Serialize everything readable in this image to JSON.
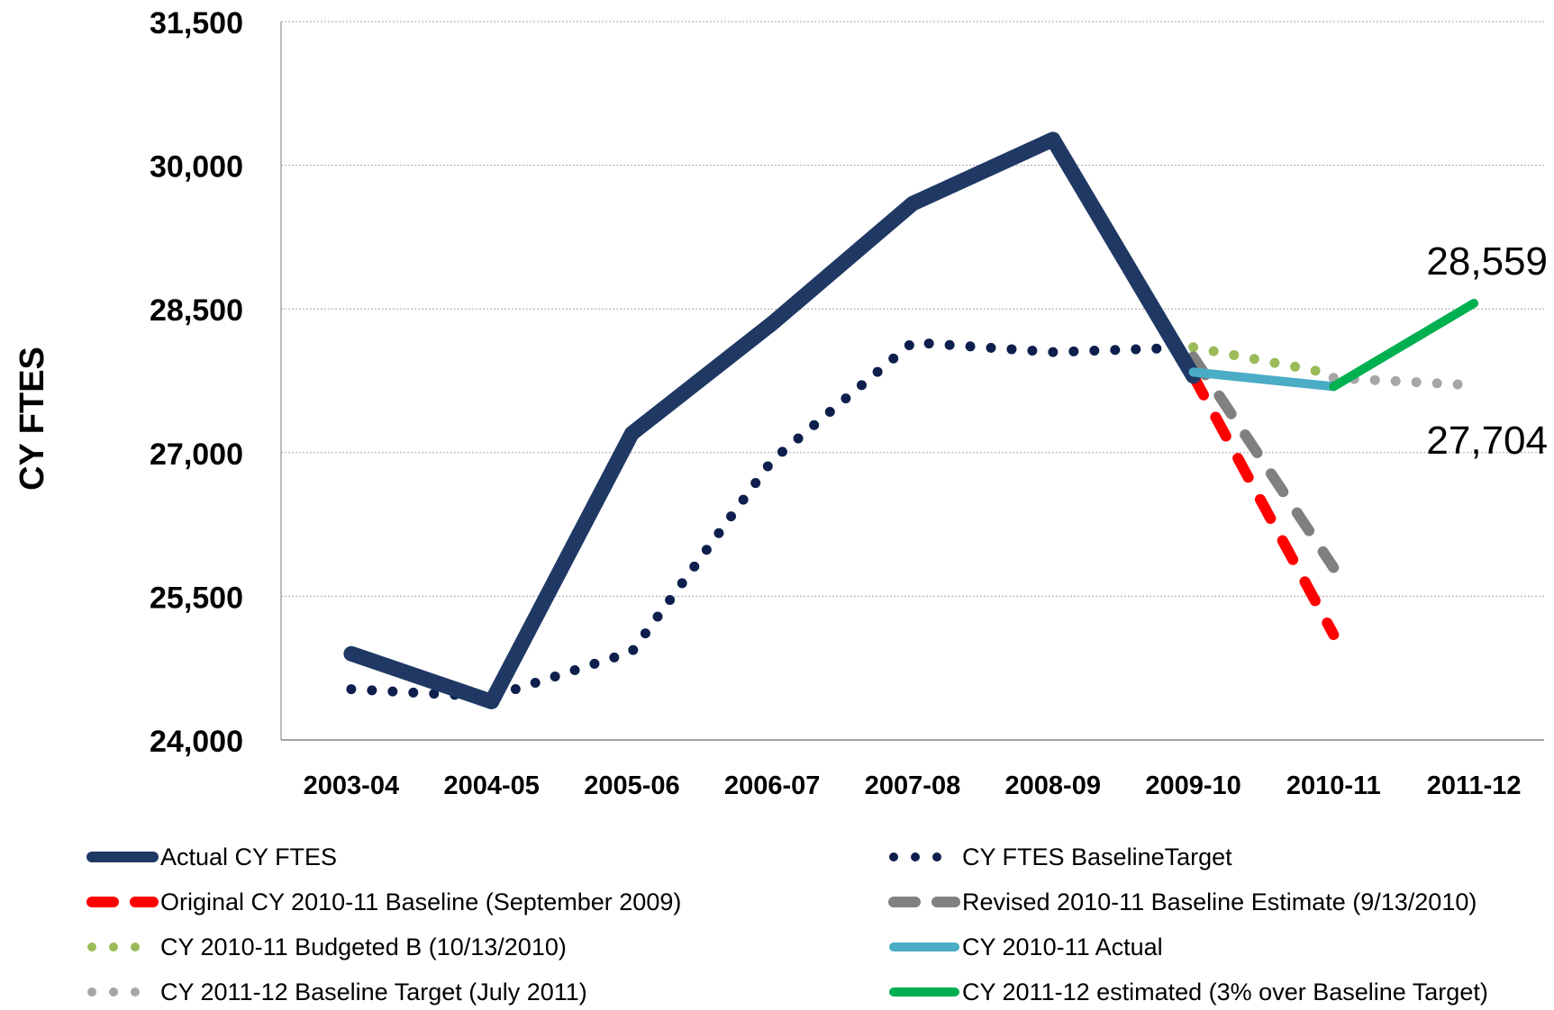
{
  "chart_data": {
    "type": "line",
    "categories": [
      "2003-04",
      "2004-05",
      "2005-06",
      "2006-07",
      "2007-08",
      "2008-09",
      "2009-10",
      "2010-11",
      "2011-12"
    ],
    "ylabel": "CY FTES",
    "xlabel": "",
    "ylim": [
      24000,
      31500
    ],
    "yticks": [
      24000,
      25500,
      27000,
      28500,
      30000,
      31500
    ],
    "ytick_labels": [
      "24,000",
      "25,500",
      "27,000",
      "28,500",
      "30,000",
      "31,500"
    ],
    "grid": "horizontal dotted",
    "legend_position": "bottom",
    "series": [
      {
        "name": "Actual CY FTES",
        "color": "#1F3864",
        "style": "solid-thick",
        "points": [
          [
            0,
            24900
          ],
          [
            1,
            24400
          ],
          [
            2,
            27200
          ],
          [
            3,
            28350
          ],
          [
            4,
            29600
          ],
          [
            5,
            30270
          ],
          [
            6,
            27800
          ]
        ]
      },
      {
        "name": "CY FTES BaselineTarget",
        "color": "#0E1F4D",
        "style": "dotted",
        "points": [
          [
            0,
            24530
          ],
          [
            1,
            24450
          ],
          [
            2,
            24920
          ],
          [
            3,
            26920
          ],
          [
            4,
            28150
          ],
          [
            5,
            28050
          ],
          [
            6,
            28100
          ]
        ]
      },
      {
        "name": "Original CY 2010-11 Baseline (September 2009)",
        "color": "#FF0000",
        "style": "dashed",
        "points": [
          [
            6,
            27800
          ],
          [
            7,
            25100
          ]
        ]
      },
      {
        "name": "Revised 2010-11 Baseline Estimate (9/13/2010)",
        "color": "#808080",
        "style": "dashed",
        "points": [
          [
            6,
            28000
          ],
          [
            7,
            25800
          ]
        ]
      },
      {
        "name": "CY 2010-11 Budgeted B (10/13/2010)",
        "color": "#9BBB59",
        "style": "dotted",
        "points": [
          [
            6,
            28100
          ],
          [
            7,
            27820
          ]
        ]
      },
      {
        "name": "CY 2010-11 Actual",
        "color": "#4BACC6",
        "style": "solid",
        "points": [
          [
            6,
            27840
          ],
          [
            7,
            27690
          ]
        ]
      },
      {
        "name": "CY 2011-12 Baseline Target (July 2011)",
        "color": "#A6A6A6",
        "style": "dotted",
        "points": [
          [
            7,
            27780
          ],
          [
            8,
            27704
          ]
        ]
      },
      {
        "name": "CY 2011-12 estimated (3% over Baseline Target)",
        "color": "#00B050",
        "style": "solid",
        "points": [
          [
            7,
            27690
          ],
          [
            8,
            28559
          ]
        ]
      }
    ],
    "annotations": [
      {
        "text": "28,559",
        "x": 8,
        "y": 28559,
        "position": "above"
      },
      {
        "text": "27,704",
        "x": 8,
        "y": 27704,
        "position": "below"
      }
    ]
  }
}
